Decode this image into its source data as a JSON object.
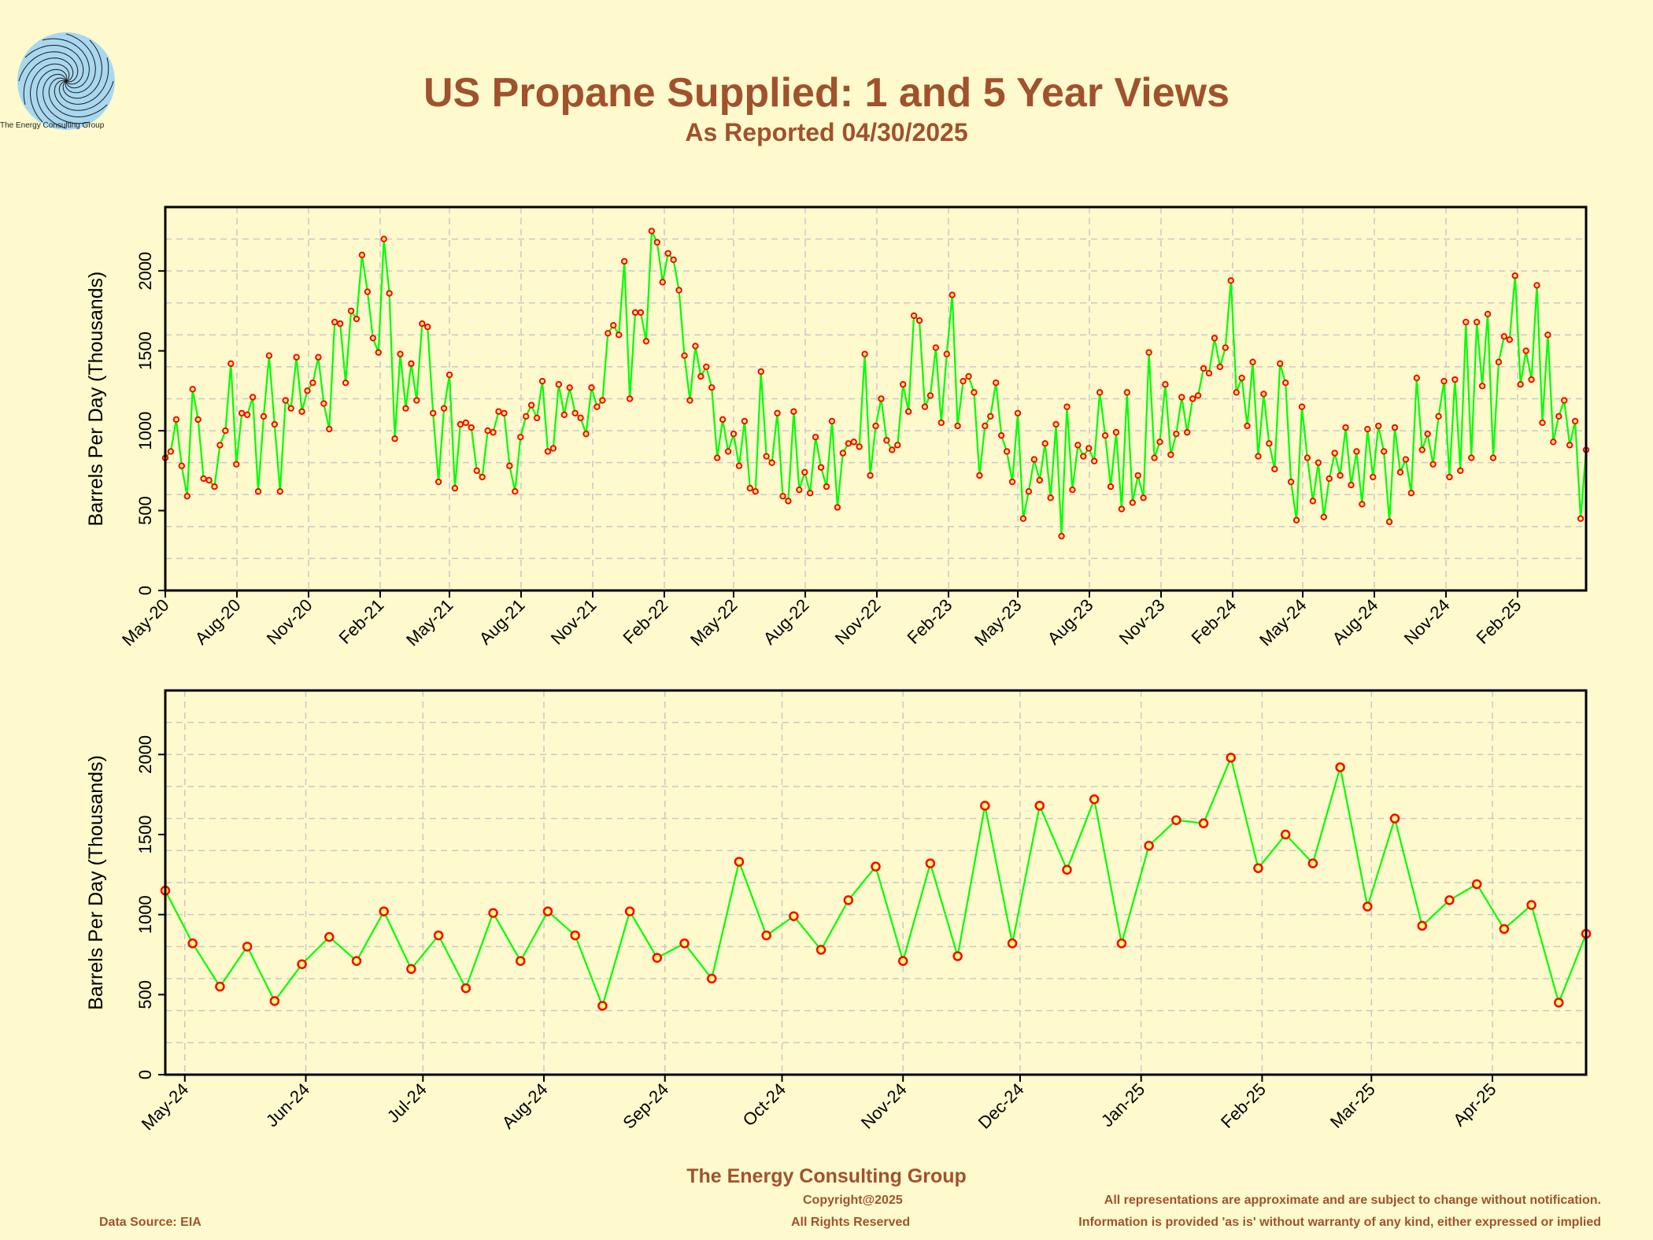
{
  "header": {
    "title": "US Propane Supplied: 1 and 5 Year Views",
    "subtitle": "As Reported 04/30/2025",
    "logo_caption": "The Energy Consulting Group"
  },
  "footer": {
    "company": "The Energy Consulting Group",
    "copyright": "Copyright@2025",
    "rights": "All Rights Reserved",
    "data_source": "Data Source: EIA",
    "disclaimer_1": "All representations are approximate and are subject to change without notification.",
    "disclaimer_2": "Information is provided 'as is' without warranty of any kind, either expressed or implied"
  },
  "colors": {
    "background": "#fffacd",
    "line": "#00ff00",
    "marker": "#ff0000",
    "title": "#a0522d",
    "grid": "#c8c8c8"
  },
  "chart_data": [
    {
      "type": "line",
      "ylabel": "Barrels Per Day (Thousands)",
      "ylim": [
        0,
        2400
      ],
      "yticks": [
        0,
        500,
        1000,
        1500,
        2000
      ],
      "grid": true,
      "x_start": "2020-05",
      "x_end": "2025-04",
      "xtick_labels": [
        "May-20",
        "Aug-20",
        "Nov-20",
        "Feb-21",
        "May-21",
        "Aug-21",
        "Nov-21",
        "Feb-22",
        "May-22",
        "Aug-22",
        "Nov-22",
        "Feb-23",
        "May-23",
        "Aug-23",
        "Nov-23",
        "Feb-24",
        "May-24",
        "Aug-24",
        "Nov-24",
        "Feb-25"
      ],
      "series": [
        {
          "frequency": "weekly",
          "values": [
            830,
            870,
            1070,
            780,
            590,
            1260,
            1070,
            700,
            690,
            650,
            910,
            1000,
            1420,
            790,
            1110,
            1100,
            1210,
            620,
            1090,
            1470,
            1040,
            620,
            1190,
            1140,
            1460,
            1120,
            1250,
            1300,
            1460,
            1170,
            1010,
            1680,
            1670,
            1300,
            1750,
            1700,
            2100,
            1870,
            1580,
            1490,
            2200,
            1860,
            950,
            1480,
            1140,
            1420,
            1190,
            1670,
            1650,
            1110,
            680,
            1140,
            1350,
            640,
            1040,
            1050,
            1020,
            750,
            710,
            1000,
            990,
            1120,
            1110,
            780,
            620,
            960,
            1090,
            1160,
            1080,
            1310,
            870,
            890,
            1290,
            1100,
            1270,
            1110,
            1080,
            980,
            1270,
            1150,
            1190,
            1610,
            1660,
            1600,
            2060,
            1200,
            1740,
            1740,
            1560,
            2250,
            2180,
            1930,
            2110,
            2070,
            1880,
            1470,
            1190,
            1530,
            1340,
            1400,
            1270,
            830,
            1070,
            870,
            980,
            780,
            1060,
            640,
            620,
            1370,
            840,
            800,
            1110,
            590,
            560,
            1120,
            630,
            740,
            610,
            960,
            770,
            650,
            1060,
            520,
            860,
            920,
            930,
            900,
            1480,
            720,
            1030,
            1200,
            940,
            880,
            910,
            1290,
            1120,
            1720,
            1690,
            1150,
            1220,
            1520,
            1050,
            1480,
            1850,
            1030,
            1310,
            1340,
            1240,
            720,
            1030,
            1090,
            1300,
            970,
            870,
            680,
            1110,
            450,
            620,
            820,
            690,
            920,
            580,
            1040,
            340,
            1150,
            630,
            910,
            840,
            890,
            810,
            1240,
            970,
            650,
            990,
            510,
            1240,
            550,
            720,
            580,
            1490,
            830,
            930,
            1290,
            850,
            980,
            1210,
            990,
            1200,
            1220,
            1390,
            1360,
            1580,
            1400,
            1520,
            1940,
            1240,
            1330,
            1030,
            1430,
            840,
            1230,
            920,
            760,
            1420,
            1300,
            680,
            440,
            1150,
            830,
            560,
            800,
            460,
            700,
            860,
            720,
            1020,
            660,
            870,
            540,
            1010,
            710,
            1030,
            870,
            430,
            1020,
            740,
            820,
            610,
            1330,
            880,
            980,
            790,
            1090,
            1310,
            710,
            1320,
            750,
            1680,
            830,
            1680,
            1280,
            1730,
            830,
            1430,
            1590,
            1570,
            1970,
            1290,
            1500,
            1320,
            1910,
            1050,
            1600,
            930,
            1090,
            1190,
            910,
            1060,
            450,
            880
          ]
        }
      ]
    },
    {
      "type": "line",
      "ylabel": "Barrels Per Day (Thousands)",
      "ylim": [
        0,
        2400
      ],
      "yticks": [
        0,
        500,
        1000,
        1500,
        2000
      ],
      "grid": true,
      "x_start": "2024-04-26",
      "x_end": "2025-04-25",
      "xtick_labels": [
        "May-24",
        "Jun-24",
        "Jul-24",
        "Aug-24",
        "Sep-24",
        "Oct-24",
        "Nov-24",
        "Dec-24",
        "Jan-25",
        "Feb-25",
        "Mar-25",
        "Apr-25"
      ],
      "series": [
        {
          "frequency": "weekly",
          "x": [
            "2024-04-26",
            "2024-05-03",
            "2024-05-10",
            "2024-05-17",
            "2024-05-24",
            "2024-05-31",
            "2024-06-07",
            "2024-06-14",
            "2024-06-21",
            "2024-06-28",
            "2024-07-05",
            "2024-07-12",
            "2024-07-19",
            "2024-07-26",
            "2024-08-02",
            "2024-08-09",
            "2024-08-16",
            "2024-08-23",
            "2024-08-30",
            "2024-09-06",
            "2024-09-13",
            "2024-09-20",
            "2024-09-27",
            "2024-10-04",
            "2024-10-11",
            "2024-10-18",
            "2024-10-25",
            "2024-11-01",
            "2024-11-08",
            "2024-11-15",
            "2024-11-22",
            "2024-11-29",
            "2024-12-06",
            "2024-12-13",
            "2024-12-20",
            "2024-12-27",
            "2025-01-03",
            "2025-01-10",
            "2025-01-17",
            "2025-01-24",
            "2025-01-31",
            "2025-02-07",
            "2025-02-14",
            "2025-02-21",
            "2025-02-28",
            "2025-03-07",
            "2025-03-14",
            "2025-03-21",
            "2025-03-28",
            "2025-04-04",
            "2025-04-11",
            "2025-04-18",
            "2025-04-25"
          ],
          "values": [
            1150,
            820,
            550,
            800,
            460,
            690,
            860,
            710,
            1020,
            660,
            870,
            540,
            1010,
            710,
            1020,
            870,
            430,
            1020,
            730,
            820,
            600,
            1330,
            870,
            990,
            780,
            1090,
            1300,
            710,
            1320,
            740,
            1680,
            820,
            1680,
            1280,
            1720,
            820,
            1430,
            1590,
            1570,
            1980,
            1290,
            1500,
            1320,
            1920,
            1050,
            1600,
            930,
            1090,
            1190,
            910,
            1060,
            450,
            880
          ]
        }
      ]
    }
  ]
}
